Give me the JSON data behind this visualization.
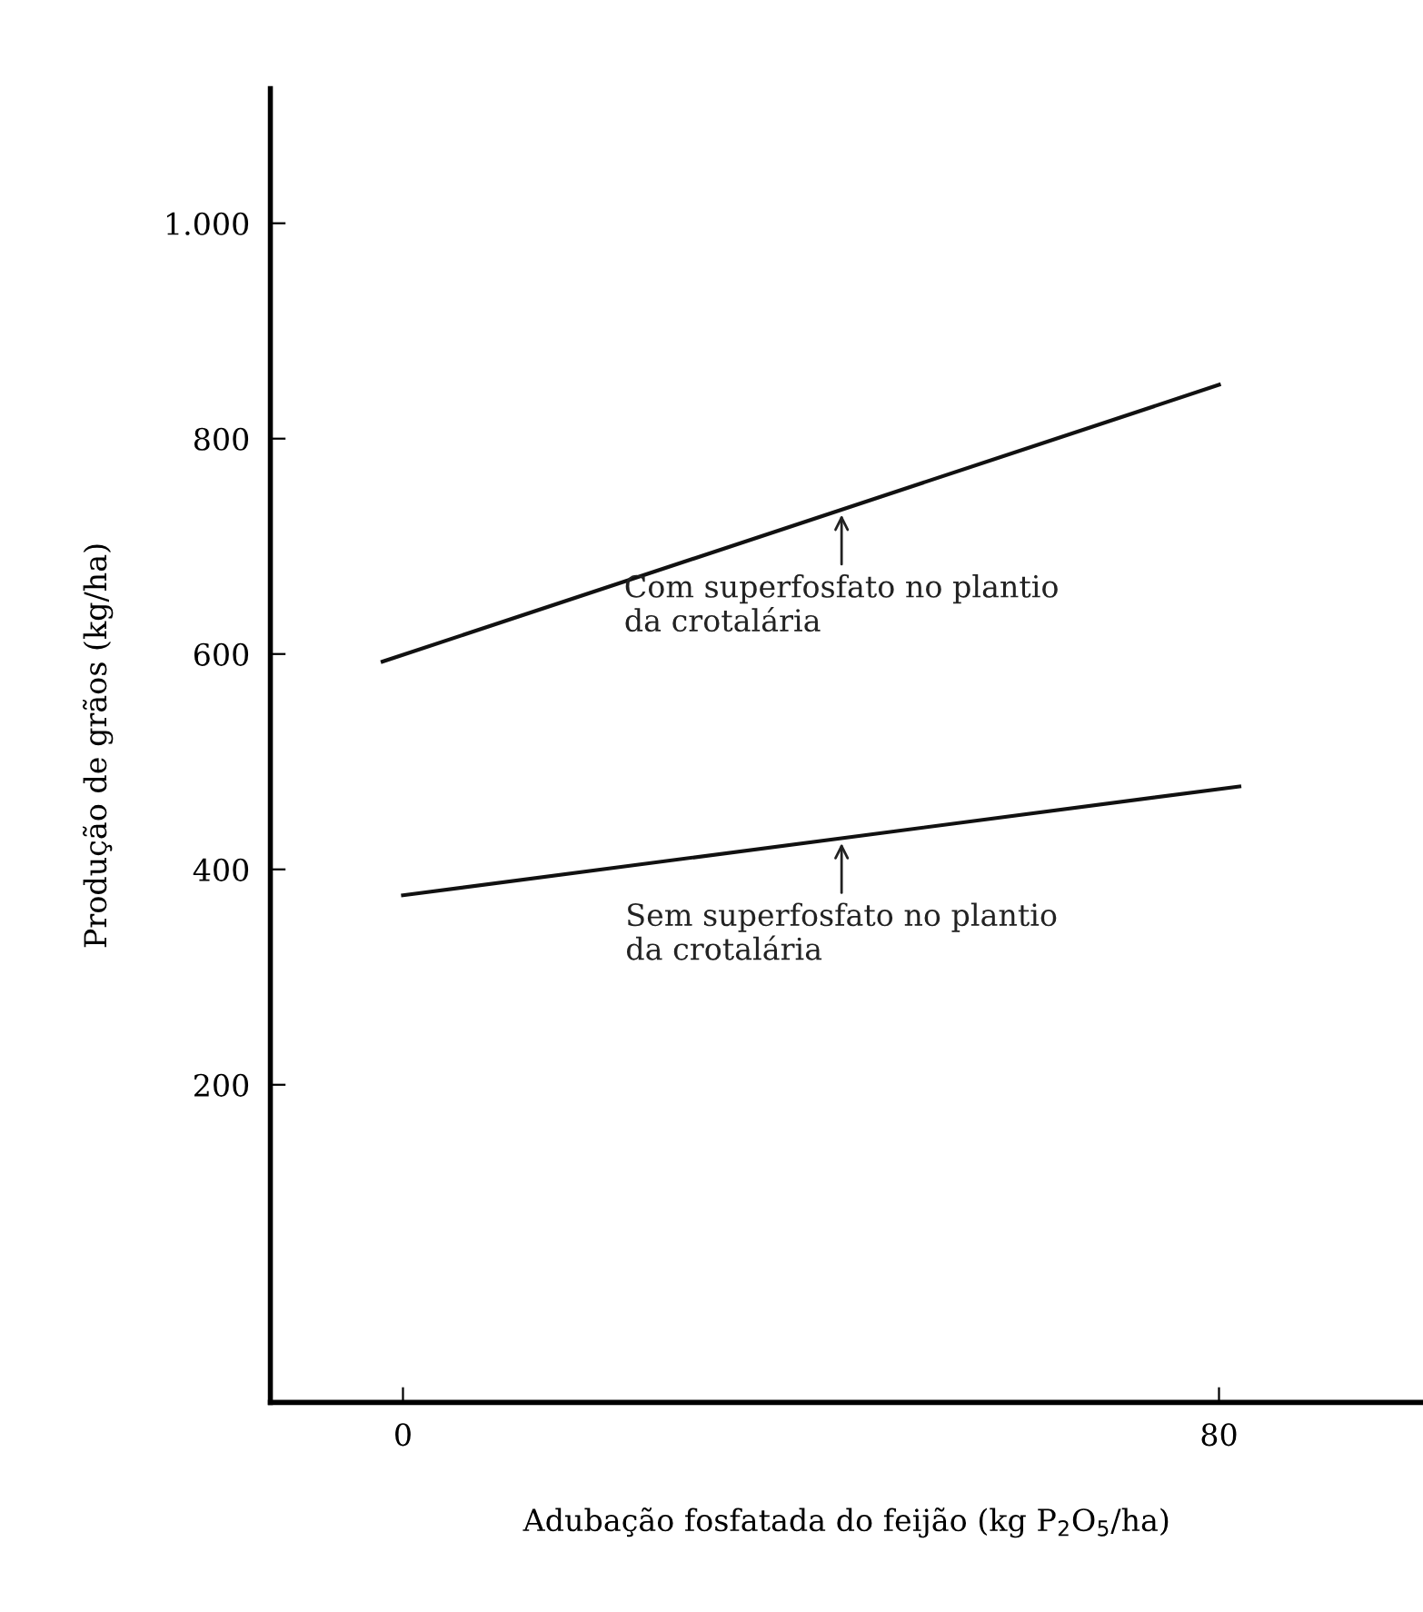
{
  "chart_data": {
    "type": "line",
    "xlabel": "Adubação fosfatada do feijão (kg P$_{2}$O$_{5}$/ha)",
    "ylabel": "Produção de grãos (kg/ha)",
    "series": [
      {
        "color": "#111111",
        "x": [
          -2,
          80
        ],
        "values": [
          593,
          850
        ]
      },
      {
        "color": "#111111",
        "x": [
          0,
          82
        ],
        "values": [
          376,
          477
        ]
      }
    ],
    "annotations": [
      {
        "text": "Com superfosfato no plantio\nda crotalária",
        "x": 43,
        "y": 734
      },
      {
        "text": "Sem superfosfato no plantio\nda crotalária",
        "x": 43,
        "y": 429
      }
    ],
    "xlim": [
      -13,
      100
    ],
    "ylim": [
      -95,
      1125
    ],
    "xticks": [
      0,
      80
    ],
    "yticks": [
      200,
      400,
      600,
      800,
      {
        "value": 1000,
        "label": "1.000"
      }
    ],
    "grid": false,
    "legend": false,
    "marker": "none",
    "line_style": "solid"
  }
}
